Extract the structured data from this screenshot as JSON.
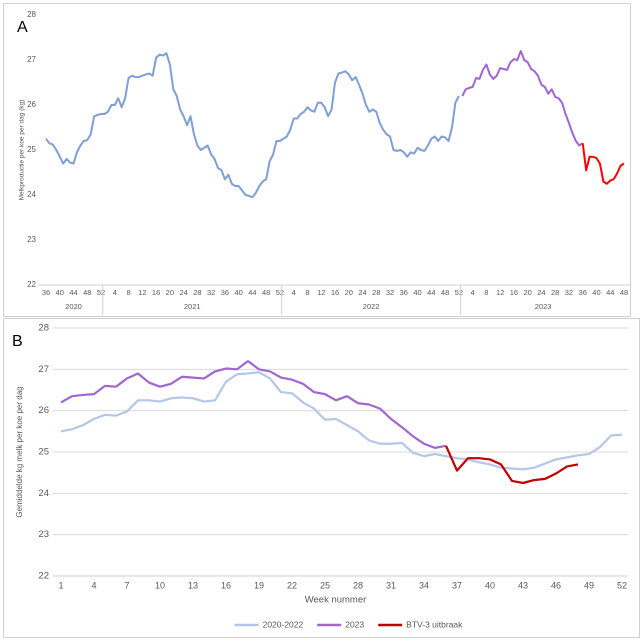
{
  "chart_data": [
    {
      "type": "line",
      "label": "A",
      "y_label": "Melkproductie per koe per dag (kg)",
      "ylim": [
        22,
        28
      ],
      "yticks": [
        22,
        23,
        24,
        25,
        26,
        27,
        28
      ],
      "grid": false,
      "x_groups": [
        "2020",
        "2021",
        "2022",
        "2023"
      ],
      "categories": [
        36,
        null,
        null,
        null,
        40,
        null,
        null,
        null,
        44,
        null,
        null,
        null,
        48,
        null,
        null,
        null,
        52,
        null,
        null,
        null,
        4,
        null,
        null,
        null,
        8,
        null,
        null,
        null,
        12,
        null,
        null,
        null,
        16,
        null,
        null,
        null,
        20,
        null,
        null,
        null,
        24,
        null,
        null,
        null,
        28,
        null,
        null,
        null,
        32,
        null,
        null,
        null,
        36,
        null,
        null,
        null,
        40,
        null,
        null,
        null,
        44,
        null,
        null,
        null,
        48,
        null,
        null,
        null,
        52,
        null,
        null,
        null,
        4,
        null,
        null,
        null,
        8,
        null,
        null,
        null,
        12,
        null,
        null,
        null,
        16,
        null,
        null,
        null,
        20,
        null,
        null,
        null,
        24,
        null,
        null,
        null,
        28,
        null,
        null,
        null,
        32,
        null,
        null,
        null,
        36,
        null,
        null,
        null,
        40,
        null,
        null,
        null,
        44,
        null,
        null,
        null,
        48,
        null,
        null,
        null,
        52,
        null,
        null,
        null,
        4,
        null,
        null,
        null,
        8,
        null,
        null,
        null,
        12,
        null,
        null,
        null,
        16,
        null,
        null,
        null,
        20,
        null,
        null,
        null,
        24,
        null,
        null,
        null,
        28,
        null,
        null,
        null,
        32,
        null,
        null,
        null,
        36,
        null,
        null,
        null,
        40,
        null,
        null,
        null,
        44,
        null,
        null,
        null,
        48
      ],
      "series": [
        {
          "color": "#7f9fd6",
          "values": [
            25.25,
            25.15,
            25.12,
            25.0,
            24.85,
            24.7,
            24.8,
            24.72,
            24.7,
            24.95,
            25.1,
            25.2,
            25.22,
            25.35,
            25.75,
            25.78,
            25.8,
            25.8,
            25.85,
            26.0,
            26.0,
            26.15,
            25.95,
            26.15,
            26.6,
            26.65,
            26.62,
            26.62,
            26.65,
            26.68,
            26.7,
            26.65,
            27.05,
            27.12,
            27.1,
            27.15,
            26.9,
            26.35,
            26.2,
            25.9,
            25.75,
            25.55,
            25.75,
            25.35,
            25.1,
            25.0,
            25.05,
            25.1,
            24.9,
            24.8,
            24.6,
            24.55,
            24.35,
            24.45,
            24.25,
            24.2,
            24.2,
            24.1,
            24.0,
            23.98,
            23.95,
            24.05,
            24.2,
            24.3,
            24.35,
            24.75,
            24.9,
            25.2,
            25.2,
            25.25,
            25.3,
            25.45,
            25.7,
            25.7,
            25.8,
            25.85,
            25.95,
            25.88,
            25.85,
            26.05,
            26.05,
            25.95,
            25.75,
            25.9,
            26.5,
            26.7,
            26.72,
            26.75,
            26.68,
            26.55,
            26.62,
            26.45,
            26.25,
            26.0,
            25.85,
            25.9,
            25.85,
            25.6,
            25.45,
            25.35,
            25.3,
            25.0,
            24.98,
            25.0,
            24.95,
            24.85,
            24.95,
            24.92,
            25.05,
            25.0,
            24.98,
            25.1,
            25.25,
            25.3,
            25.2,
            25.3,
            25.28,
            25.2,
            25.5,
            26.05,
            26.2,
            null,
            null,
            null,
            null,
            null,
            null,
            null,
            null,
            null,
            null,
            null,
            null,
            null,
            null,
            null,
            null,
            null,
            null,
            null,
            null,
            null,
            null,
            null,
            null,
            null,
            null,
            null,
            null,
            null,
            null,
            null,
            null,
            null,
            null,
            null,
            null,
            null,
            null,
            null,
            null,
            null,
            null,
            null,
            null,
            null,
            null,
            null,
            null
          ]
        },
        {
          "color": "#a066d3",
          "values": [
            null,
            null,
            null,
            null,
            null,
            null,
            null,
            null,
            null,
            null,
            null,
            null,
            null,
            null,
            null,
            null,
            null,
            null,
            null,
            null,
            null,
            null,
            null,
            null,
            null,
            null,
            null,
            null,
            null,
            null,
            null,
            null,
            null,
            null,
            null,
            null,
            null,
            null,
            null,
            null,
            null,
            null,
            null,
            null,
            null,
            null,
            null,
            null,
            null,
            null,
            null,
            null,
            null,
            null,
            null,
            null,
            null,
            null,
            null,
            null,
            null,
            null,
            null,
            null,
            null,
            null,
            null,
            null,
            null,
            null,
            null,
            null,
            null,
            null,
            null,
            null,
            null,
            null,
            null,
            null,
            null,
            null,
            null,
            null,
            null,
            null,
            null,
            null,
            null,
            null,
            null,
            null,
            null,
            null,
            null,
            null,
            null,
            null,
            null,
            null,
            null,
            null,
            null,
            null,
            null,
            null,
            null,
            null,
            null,
            null,
            null,
            null,
            null,
            null,
            null,
            null,
            null,
            null,
            null,
            null,
            null,
            26.2,
            26.35,
            26.38,
            26.4,
            26.6,
            26.58,
            26.78,
            26.9,
            26.68,
            26.58,
            26.65,
            26.82,
            26.8,
            26.78,
            26.95,
            27.02,
            27.0,
            27.2,
            27.0,
            26.95,
            26.8,
            26.75,
            26.65,
            26.45,
            26.4,
            26.25,
            26.35,
            26.18,
            26.15,
            26.05,
            25.8,
            25.6,
            25.38,
            25.2,
            25.1,
            25.15,
            null,
            null,
            null,
            null,
            null,
            null,
            null,
            null,
            null,
            null,
            null,
            null
          ]
        },
        {
          "color": "#ff0000",
          "values": [
            null,
            null,
            null,
            null,
            null,
            null,
            null,
            null,
            null,
            null,
            null,
            null,
            null,
            null,
            null,
            null,
            null,
            null,
            null,
            null,
            null,
            null,
            null,
            null,
            null,
            null,
            null,
            null,
            null,
            null,
            null,
            null,
            null,
            null,
            null,
            null,
            null,
            null,
            null,
            null,
            null,
            null,
            null,
            null,
            null,
            null,
            null,
            null,
            null,
            null,
            null,
            null,
            null,
            null,
            null,
            null,
            null,
            null,
            null,
            null,
            null,
            null,
            null,
            null,
            null,
            null,
            null,
            null,
            null,
            null,
            null,
            null,
            null,
            null,
            null,
            null,
            null,
            null,
            null,
            null,
            null,
            null,
            null,
            null,
            null,
            null,
            null,
            null,
            null,
            null,
            null,
            null,
            null,
            null,
            null,
            null,
            null,
            null,
            null,
            null,
            null,
            null,
            null,
            null,
            null,
            null,
            null,
            null,
            null,
            null,
            null,
            null,
            null,
            null,
            null,
            null,
            null,
            null,
            null,
            null,
            null,
            null,
            null,
            null,
            null,
            null,
            null,
            null,
            null,
            null,
            null,
            null,
            null,
            null,
            null,
            null,
            null,
            null,
            null,
            null,
            null,
            null,
            null,
            null,
            null,
            null,
            null,
            null,
            null,
            null,
            null,
            null,
            null,
            null,
            null,
            null,
            25.15,
            24.55,
            24.85,
            24.85,
            24.82,
            24.7,
            24.3,
            24.25,
            24.32,
            24.35,
            24.48,
            24.65,
            24.7
          ]
        }
      ]
    },
    {
      "type": "line",
      "label": "B",
      "y_label": "Gemiddelde kg melk per koe per dag",
      "x_label": "Week nummer",
      "ylim": [
        22,
        28
      ],
      "yticks": [
        22,
        23,
        24,
        25,
        26,
        27,
        28
      ],
      "grid": true,
      "legend": "bottom",
      "categories": [
        1,
        null,
        null,
        4,
        null,
        null,
        7,
        null,
        null,
        10,
        null,
        null,
        13,
        null,
        null,
        16,
        null,
        null,
        19,
        null,
        null,
        22,
        null,
        null,
        25,
        null,
        null,
        28,
        null,
        null,
        31,
        null,
        null,
        34,
        null,
        null,
        37,
        null,
        null,
        40,
        null,
        null,
        43,
        null,
        null,
        46,
        null,
        null,
        49,
        null,
        null,
        52
      ],
      "series": [
        {
          "name": "2020-2022",
          "color": "#b4c7e7",
          "values": [
            25.5,
            25.55,
            25.65,
            25.8,
            25.9,
            25.88,
            25.98,
            26.25,
            26.25,
            26.22,
            26.3,
            26.32,
            26.3,
            26.22,
            26.25,
            26.7,
            26.88,
            26.9,
            26.93,
            26.78,
            26.45,
            26.42,
            26.2,
            26.05,
            25.78,
            25.8,
            25.65,
            25.5,
            25.28,
            25.2,
            25.2,
            25.22,
            24.98,
            24.9,
            24.95,
            24.9,
            24.85,
            24.82,
            24.75,
            24.7,
            24.62,
            24.6,
            24.58,
            24.62,
            24.72,
            24.82,
            24.87,
            24.92,
            24.95,
            25.12,
            25.4,
            25.42
          ]
        },
        {
          "name": "2023",
          "color": "#a066d3",
          "values": [
            26.2,
            26.35,
            26.38,
            26.4,
            26.6,
            26.58,
            26.78,
            26.9,
            26.68,
            26.58,
            26.65,
            26.82,
            26.8,
            26.78,
            26.95,
            27.02,
            27.0,
            27.2,
            27.0,
            26.95,
            26.8,
            26.75,
            26.65,
            26.45,
            26.4,
            26.25,
            26.35,
            26.18,
            26.15,
            26.05,
            25.8,
            25.6,
            25.38,
            25.2,
            25.1,
            25.15,
            null,
            null,
            null,
            null,
            null,
            null,
            null,
            null,
            null,
            null,
            null,
            null,
            null,
            null,
            null,
            null
          ]
        },
        {
          "name": "BTV-3 uitbraak",
          "color": "#c00000",
          "values": [
            null,
            null,
            null,
            null,
            null,
            null,
            null,
            null,
            null,
            null,
            null,
            null,
            null,
            null,
            null,
            null,
            null,
            null,
            null,
            null,
            null,
            null,
            null,
            null,
            null,
            null,
            null,
            null,
            null,
            null,
            null,
            null,
            null,
            null,
            null,
            25.15,
            24.55,
            24.85,
            24.85,
            24.82,
            24.7,
            24.3,
            24.25,
            24.32,
            24.35,
            24.48,
            24.65,
            24.7,
            null,
            null,
            null,
            null
          ]
        }
      ]
    }
  ]
}
